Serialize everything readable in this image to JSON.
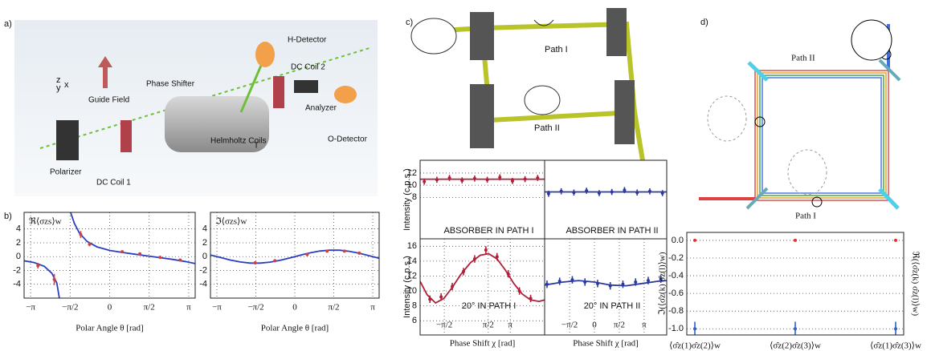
{
  "panels": {
    "a": "a)",
    "b": "b)",
    "c": "c)",
    "d": "d)"
  },
  "setup": {
    "h_detector": "H-Detector",
    "guide_field": "Guide Field",
    "phase_shifter": "Phase Shifter",
    "dc_coil_2": "DC Coil 2",
    "analyzer": "Analyzer",
    "o_detector": "O-Detector",
    "t": "T",
    "helmholtz_coils": "Helmholtz Coils",
    "polarizer": "Polarizer",
    "dc_coil_1": "DC Coil 1",
    "axes": [
      "z",
      "y",
      "x"
    ]
  },
  "cat_figure": {
    "path_1": "Path I",
    "path_2": "Path II"
  },
  "path_figure": {
    "path_1": "Path I",
    "path_2": "Path II"
  },
  "chart_data": [
    {
      "type": "line",
      "title": "ℜ⟨σzs⟩w",
      "xlabel": "Polar Angle θ [rad]",
      "xlim": [
        -3.4,
        3.4
      ],
      "ylim": [
        -6,
        6.4
      ],
      "xticks": [
        {
          "value": -3.1416,
          "label": "−π"
        },
        {
          "value": -1.5708,
          "label": "−π/2"
        },
        0,
        {
          "value": 1.5708,
          "label": "π/2"
        },
        {
          "value": 3.1416,
          "label": "π"
        }
      ],
      "yticks": [
        -4,
        -2,
        0,
        2,
        4
      ],
      "grid": true,
      "series": [
        {
          "mode": "line",
          "color": "#2a3ec0",
          "x": [
            -3.4,
            -3,
            -2.6,
            -2.3,
            -2.1,
            -2.0,
            null,
            -1.55,
            -1.4,
            -1.2,
            -0.9,
            -0.5,
            0,
            0.5,
            1,
            1.5,
            2,
            2.5,
            3,
            3.4
          ],
          "values": [
            -0.6,
            -0.85,
            -1.4,
            -2.4,
            -3.8,
            -6,
            null,
            6.4,
            4.8,
            3.4,
            2.2,
            1.4,
            0.9,
            0.6,
            0.35,
            0.1,
            -0.15,
            -0.4,
            -0.7,
            -1.0
          ]
        },
        {
          "mode": "markers",
          "color": "#d04040",
          "x": [
            -2.85,
            -2.2,
            -1.15,
            -0.8,
            0.5,
            1.2,
            2.0,
            2.8
          ],
          "values": [
            -1.3,
            -3.3,
            3.2,
            1.8,
            0.7,
            0.4,
            -0.1,
            -0.5
          ],
          "errors": [
            0.4,
            0.8,
            0.5,
            0.3,
            0.2,
            0.2,
            0.2,
            0.2
          ]
        }
      ]
    },
    {
      "type": "line",
      "title": "ℑ⟨σzs⟩w",
      "xlabel": "Polar Angle θ [rad]",
      "xlim": [
        -3.4,
        3.4
      ],
      "ylim": [
        -6,
        6.4
      ],
      "xticks": [
        {
          "value": -3.1416,
          "label": "−π"
        },
        {
          "value": -1.5708,
          "label": "−π/2"
        },
        0,
        {
          "value": 1.5708,
          "label": "π/2"
        },
        {
          "value": 3.1416,
          "label": "π"
        }
      ],
      "yticks": [
        -4,
        -2,
        0,
        2,
        4
      ],
      "grid": true,
      "series": [
        {
          "mode": "line",
          "color": "#2a3ec0",
          "x": [
            -3.4,
            -3,
            -2.6,
            -2.2,
            -1.8,
            -1.4,
            -1,
            -0.6,
            -0.2,
            0.2,
            0.6,
            1,
            1.4,
            1.8,
            2.2,
            2.6,
            3,
            3.4
          ],
          "values": [
            0.24,
            -0.13,
            -0.49,
            -0.77,
            -0.93,
            -0.94,
            -0.8,
            -0.54,
            -0.19,
            0.19,
            0.54,
            0.8,
            0.94,
            0.93,
            0.77,
            0.49,
            0.13,
            -0.24
          ]
        },
        {
          "mode": "markers",
          "color": "#d04040",
          "x": [
            -1.6,
            -0.8,
            0.5,
            1.3,
            2.0,
            2.6
          ],
          "values": [
            -0.9,
            -0.6,
            0.3,
            0.8,
            0.8,
            0.5
          ],
          "errors": [
            0.15,
            0.15,
            0.15,
            0.15,
            0.15,
            0.15
          ]
        }
      ]
    },
    {
      "type": "line",
      "ylabel": "Intensity (c.p.s.)",
      "annotation": "ABSORBER IN PATH I",
      "xlim": [
        -3.3,
        5.6
      ],
      "ylim": [
        1.2,
        14.1
      ],
      "yticks": [
        8,
        10,
        12
      ],
      "grid": true,
      "series": [
        {
          "mode": "line",
          "color": "#b0203a",
          "x": [
            -3.3,
            5.6
          ],
          "values": [
            11,
            11
          ]
        },
        {
          "mode": "markers",
          "color": "#b0203a",
          "x": [
            -3,
            -2.1,
            -1.2,
            -0.3,
            0.6,
            1.5,
            2.4,
            3.3,
            4.2,
            5.1
          ],
          "values": [
            10.6,
            10.9,
            11.2,
            10.8,
            11.1,
            10.9,
            11.3,
            10.7,
            11.0,
            11.2
          ],
          "errors": [
            0.5,
            0.5,
            0.5,
            0.5,
            0.5,
            0.5,
            0.5,
            0.5,
            0.5,
            0.5
          ]
        }
      ]
    },
    {
      "type": "line",
      "annotation": "ABSORBER IN PATH II",
      "xlim": [
        -3.15,
        4.57
      ],
      "ylim": [
        1.2,
        14.1
      ],
      "grid": true,
      "series": [
        {
          "mode": "line",
          "color": "#2a3aa0",
          "x": [
            -3.15,
            4.57
          ],
          "values": [
            8.9,
            8.9
          ]
        },
        {
          "mode": "markers",
          "color": "#2a3aa0",
          "x": [
            -2.9,
            -2.1,
            -1.3,
            -0.5,
            0.3,
            1.1,
            1.9,
            2.7,
            3.5,
            4.3
          ],
          "values": [
            8.6,
            9.0,
            8.8,
            9.1,
            8.7,
            8.9,
            9.2,
            8.8,
            9.0,
            8.7
          ],
          "errors": [
            0.5,
            0.5,
            0.5,
            0.5,
            0.5,
            0.5,
            0.5,
            0.5,
            0.5,
            0.5
          ]
        }
      ]
    },
    {
      "type": "line",
      "ylabel": "Intensity (c.p.s.)",
      "annotation": "20° IN PATH I",
      "xlabel": "Phase Shift χ [rad]",
      "xlim": [
        -3.3,
        5.6
      ],
      "ylim": [
        4.1,
        17
      ],
      "xticks": [
        {
          "value": -1.5708,
          "label": "−π/2"
        },
        {
          "value": 1.5708,
          "label": "π/2"
        },
        {
          "value": 3.1416,
          "label": "π"
        }
      ],
      "yticks": [
        6,
        8,
        10,
        12,
        14,
        16
      ],
      "grid": true,
      "series": [
        {
          "mode": "line",
          "color": "#b0203a",
          "x": [
            -3.3,
            -2.8,
            -2.2,
            -1.6,
            -1,
            -0.4,
            0.3,
            1,
            1.6,
            2.2,
            2.8,
            3.4,
            4,
            4.6,
            5.2,
            5.6
          ],
          "values": [
            11.3,
            9.5,
            8.4,
            9,
            10.5,
            12.2,
            13.8,
            14.8,
            15,
            14.3,
            12.8,
            11,
            9.6,
            8.8,
            8.6,
            8.8
          ]
        },
        {
          "mode": "markers",
          "color": "#b0203a",
          "x": [
            -2.6,
            -1.8,
            -1,
            -0.2,
            0.6,
            1.4,
            2.2,
            3,
            3.8,
            4.6
          ],
          "values": [
            8.9,
            9.2,
            10.6,
            12.6,
            14.3,
            15.5,
            14.6,
            12.3,
            10,
            9.0
          ],
          "errors": [
            0.5,
            0.5,
            0.5,
            0.5,
            0.5,
            0.5,
            0.5,
            0.5,
            0.5,
            0.5
          ]
        }
      ]
    },
    {
      "type": "line",
      "annotation": "20° IN PATH II",
      "xlabel": "Phase Shift χ [rad]",
      "xlim": [
        -3.15,
        4.57
      ],
      "ylim": [
        4.1,
        17
      ],
      "xticks": [
        {
          "value": -1.5708,
          "label": "−π/2"
        },
        0,
        {
          "value": 1.5708,
          "label": "π/2"
        },
        {
          "value": 3.1416,
          "label": "π"
        }
      ],
      "grid": true,
      "series": [
        {
          "mode": "line",
          "color": "#2a3aa0",
          "x": [
            -3.15,
            -2,
            -1,
            0,
            1,
            2,
            3,
            4,
            4.57
          ],
          "values": [
            10.8,
            11.2,
            11.4,
            11.2,
            10.8,
            10.7,
            11,
            11.3,
            11.4
          ]
        },
        {
          "mode": "markers",
          "color": "#2a3aa0",
          "x": [
            -3,
            -2.2,
            -1.4,
            -0.6,
            0.2,
            1,
            1.8,
            2.6,
            3.4,
            4.2
          ],
          "values": [
            10.9,
            11.3,
            11.5,
            11.2,
            11.0,
            10.7,
            10.9,
            11.2,
            11.4,
            11.6
          ],
          "errors": [
            0.5,
            0.5,
            0.5,
            0.5,
            0.5,
            0.5,
            0.5,
            0.5,
            0.5,
            0.5
          ]
        }
      ]
    },
    {
      "type": "scatter",
      "ylabel": "ℑ(⟨σ̂z(k) σ̂z(l)⟩w)",
      "ylabel_right": "ℜ(⟨σ̂z(k) σ̂z(l)⟩w)",
      "categories": [
        "⟨σ̂z(1)σ̂z(2)⟩w",
        "⟨σ̂z(2)σ̂z(3)⟩w",
        "⟨σ̂z(1)σ̂z(3)⟩w"
      ],
      "ylim": [
        -1.07,
        0.09
      ],
      "yticks": [
        {
          "value": 0,
          "label": "0.0"
        },
        -0.2,
        -0.4,
        -0.6,
        -0.8,
        {
          "value": -1,
          "label": "-1.0"
        }
      ],
      "grid": true,
      "series": [
        {
          "mode": "markers",
          "color": "#e03030",
          "values": [
            0,
            0,
            0
          ]
        },
        {
          "mode": "markers",
          "color": "#2a60d0",
          "values": [
            -1,
            -1,
            -1
          ],
          "errors": [
            0.08,
            0.08,
            0.08
          ]
        }
      ]
    }
  ]
}
